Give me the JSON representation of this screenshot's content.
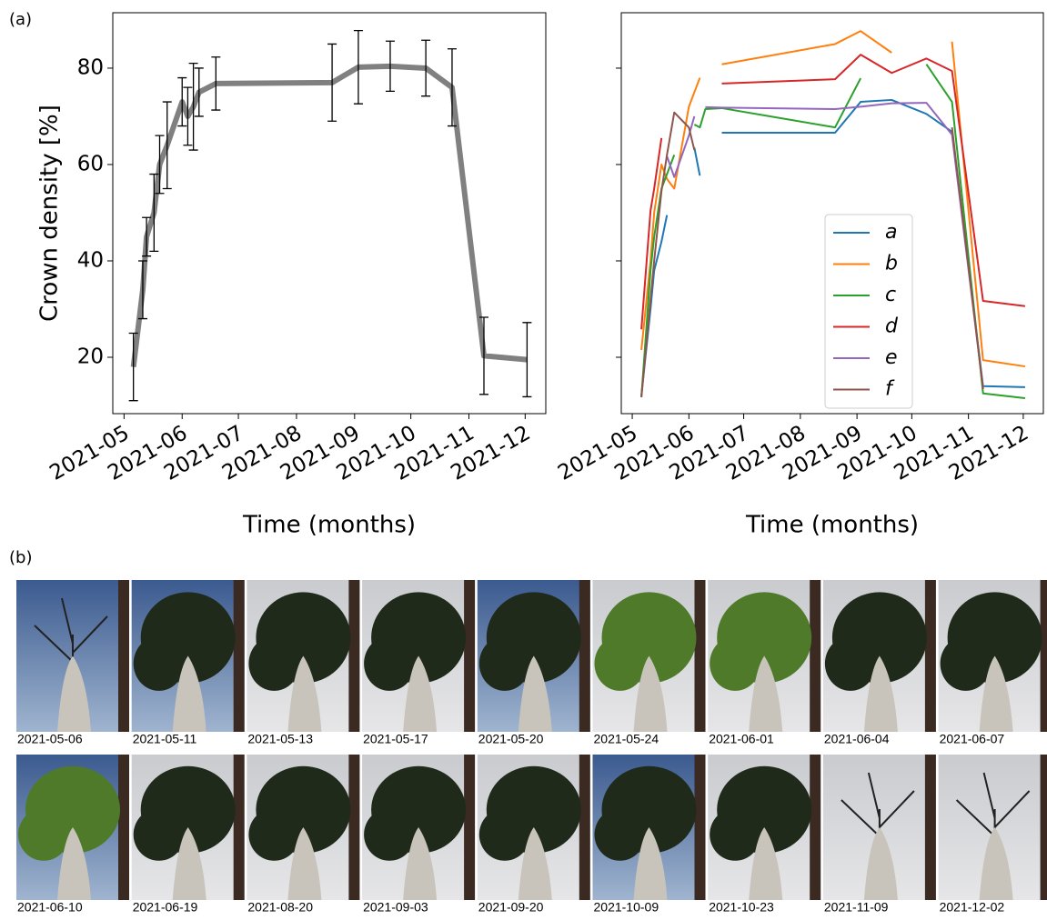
{
  "panel_labels": [
    "(a)",
    "(b)"
  ],
  "chart_data": [
    {
      "type": "line",
      "ylabel": "Crown density [%]",
      "xlabel": "Time (months)",
      "x": [
        "2021-05-06",
        "2021-05-11",
        "2021-05-13",
        "2021-05-17",
        "2021-05-20",
        "2021-05-24",
        "2021-06-01",
        "2021-06-04",
        "2021-06-07",
        "2021-06-10",
        "2021-06-19",
        "2021-08-20",
        "2021-09-03",
        "2021-09-20",
        "2021-10-09",
        "2021-10-23",
        "2021-11-09",
        "2021-12-02"
      ],
      "series": [
        {
          "color": "#808080",
          "values": [
            18,
            34,
            45,
            50,
            60,
            64,
            73,
            70,
            72,
            75,
            76.8,
            77,
            80.2,
            80.4,
            80,
            76,
            20.3,
            19.5
          ],
          "errors": [
            7,
            6,
            4,
            8,
            6,
            9,
            5,
            6,
            9,
            5,
            5.5,
            8,
            7.6,
            5.2,
            5.8,
            8,
            8,
            7.7
          ]
        }
      ],
      "xlim": [
        "2021-04-25",
        "2021-12-12"
      ],
      "xticks": [
        {
          "value": "2021-05-01",
          "label": "2021-05"
        },
        {
          "value": "2021-06-01",
          "label": "2021-06"
        },
        {
          "value": "2021-07-01",
          "label": "2021-07"
        },
        {
          "value": "2021-08-01",
          "label": "2021-08"
        },
        {
          "value": "2021-09-01",
          "label": "2021-09"
        },
        {
          "value": "2021-10-01",
          "label": "2021-10"
        },
        {
          "value": "2021-11-01",
          "label": "2021-11"
        },
        {
          "value": "2021-12-01",
          "label": "2021-12"
        }
      ],
      "ylim": [
        8.3,
        91.5
      ],
      "yticks": [
        20,
        40,
        60,
        80
      ],
      "y_tick_labels": true
    },
    {
      "type": "line",
      "xlabel": "Time (months)",
      "x": [
        "2021-05-06",
        "2021-05-11",
        "2021-05-13",
        "2021-05-17",
        "2021-05-20",
        "2021-05-24",
        "2021-06-01",
        "2021-06-04",
        "2021-06-07",
        "2021-06-10",
        "2021-06-19",
        "2021-08-20",
        "2021-09-03",
        "2021-09-20",
        "2021-10-09",
        "2021-10-23",
        "2021-11-09",
        "2021-12-02"
      ],
      "series": [
        {
          "name": "a",
          "color": "#1f77b4",
          "values": [
            12,
            30,
            38,
            44,
            49.5,
            null,
            null,
            63.5,
            57.7,
            null,
            66.6,
            66.6,
            73,
            73.4,
            70.5,
            66.8,
            14,
            13.8
          ]
        },
        {
          "name": "b",
          "color": "#ff7f0e",
          "values": [
            21.5,
            40,
            50,
            60,
            57,
            55,
            72,
            75,
            78,
            null,
            80.8,
            85,
            87.7,
            83.2,
            null,
            85.5,
            19.4,
            18.1
          ]
        },
        {
          "name": "c",
          "color": "#2ca02c",
          "values": [
            11.7,
            38,
            45,
            55,
            58,
            62,
            null,
            68.3,
            67.7,
            71.5,
            71.7,
            67.7,
            77.9,
            null,
            80.8,
            73,
            12.5,
            11.5
          ]
        },
        {
          "name": "d",
          "color": "#d62728",
          "values": [
            25.8,
            50.4,
            55,
            65.5,
            null,
            null,
            null,
            null,
            null,
            null,
            76.8,
            77.7,
            82.8,
            79,
            82,
            79.4,
            31.7,
            30.6
          ]
        },
        {
          "name": "e",
          "color": "#9467bd",
          "values": [
            null,
            null,
            null,
            null,
            61.7,
            57.4,
            66,
            70,
            null,
            71.9,
            71.8,
            71.5,
            72,
            72.7,
            72.8,
            66.2,
            13.5,
            null
          ]
        },
        {
          "name": "f",
          "color": "#8c564b",
          "values": [
            11.7,
            32,
            40,
            54.5,
            62,
            70.8,
            67.7,
            63,
            null,
            null,
            null,
            null,
            null,
            null,
            null,
            67.7,
            13.4,
            null
          ]
        }
      ],
      "xlim": [
        "2021-04-25",
        "2021-12-12"
      ],
      "xticks": [
        {
          "value": "2021-05-01",
          "label": "2021-05"
        },
        {
          "value": "2021-06-01",
          "label": "2021-06"
        },
        {
          "value": "2021-07-01",
          "label": "2021-07"
        },
        {
          "value": "2021-08-01",
          "label": "2021-08"
        },
        {
          "value": "2021-09-01",
          "label": "2021-09"
        },
        {
          "value": "2021-10-01",
          "label": "2021-10"
        },
        {
          "value": "2021-11-01",
          "label": "2021-11"
        },
        {
          "value": "2021-12-01",
          "label": "2021-12"
        }
      ],
      "ylim": [
        8.3,
        91.5
      ],
      "yticks": [
        20,
        40,
        60,
        80
      ],
      "y_tick_labels": false,
      "legend": "center"
    }
  ],
  "photos": [
    "2021-05-06",
    "2021-05-11",
    "2021-05-13",
    "2021-05-17",
    "2021-05-20",
    "2021-05-24",
    "2021-06-01",
    "2021-06-04",
    "2021-06-07",
    "2021-06-10",
    "2021-06-19",
    "2021-08-20",
    "2021-09-03",
    "2021-09-20",
    "2021-10-09",
    "2021-10-23",
    "2021-11-09",
    "2021-12-02"
  ]
}
